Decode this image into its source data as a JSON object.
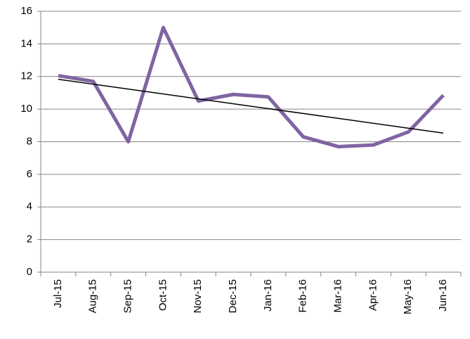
{
  "chart_data": {
    "type": "line",
    "categories": [
      "Jul-15",
      "Aug-15",
      "Sep-15",
      "Oct-15",
      "Nov-15",
      "Dec-15",
      "Jan-16",
      "Feb-16",
      "Mar-16",
      "Apr-16",
      "May-16",
      "Jun-16"
    ],
    "series": [
      {
        "color": "#8064a2",
        "values": [
          12.05,
          11.7,
          8.0,
          15.0,
          10.5,
          10.9,
          10.75,
          8.3,
          7.7,
          7.8,
          8.6,
          10.85
        ]
      }
    ],
    "trendline": true,
    "trendline_color": "#000000",
    "ylim": [
      0,
      16
    ],
    "yticks": [
      0,
      2,
      4,
      6,
      8,
      10,
      12,
      14,
      16
    ],
    "grid": true
  }
}
